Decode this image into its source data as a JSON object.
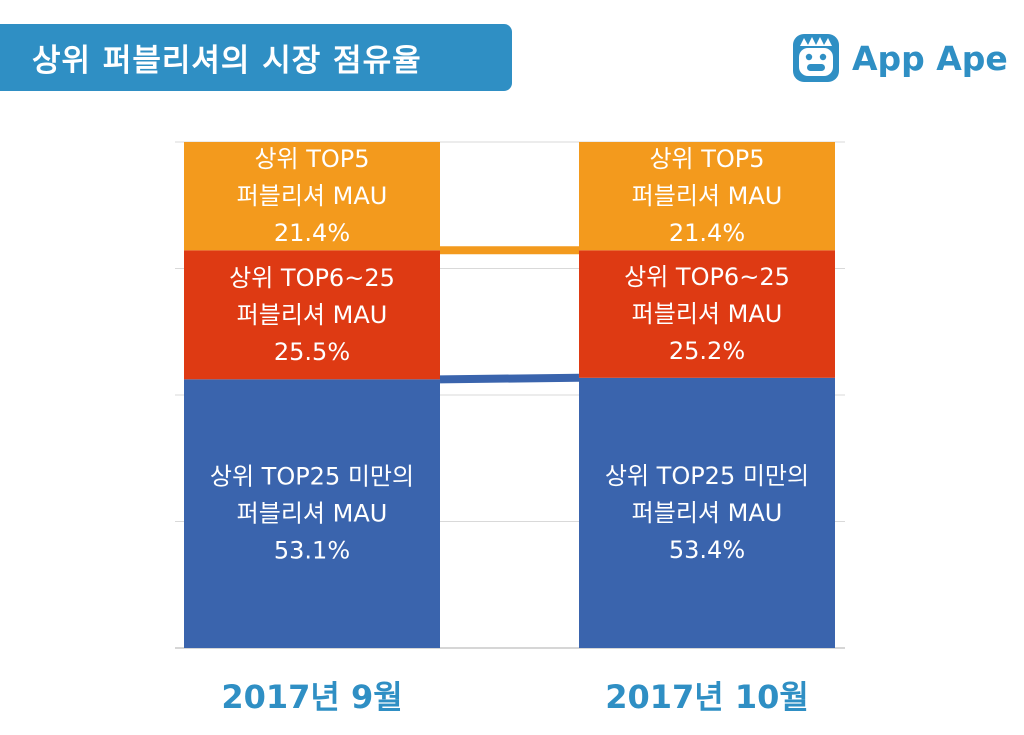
{
  "header": {
    "title": "상위 퍼블리셔의 시장 점유율",
    "brand_name": "App Ape",
    "logo_icon": "ape-face-icon"
  },
  "colors": {
    "brand": "#2f8fc4",
    "top5": "#f39a1d",
    "top6_25": "#de3a13",
    "below25": "#3a64ad"
  },
  "chart_data": {
    "type": "bar",
    "stacked": true,
    "normalized_percent": true,
    "categories": [
      "2017년 9월",
      "2017년 10월"
    ],
    "series": [
      {
        "key": "below25",
        "labels": [
          "상위 TOP25 미만의",
          "퍼블리셔 MAU"
        ],
        "values": [
          53.1,
          53.4
        ],
        "value_labels": [
          "53.1%",
          "53.4%"
        ],
        "color": "#3a64ad"
      },
      {
        "key": "top6_25",
        "labels": [
          "상위 TOP6~25",
          "퍼블리셔 MAU"
        ],
        "values": [
          25.5,
          25.2
        ],
        "value_labels": [
          "25.5%",
          "25.2%"
        ],
        "color": "#de3a13"
      },
      {
        "key": "top5",
        "labels": [
          "상위 TOP5",
          "퍼블리셔 MAU"
        ],
        "values": [
          21.4,
          21.4
        ],
        "value_labels": [
          "21.4%",
          "21.4%"
        ],
        "color": "#f39a1d"
      }
    ],
    "ylim": [
      0,
      100
    ],
    "grid": true,
    "connectors": true,
    "title": "",
    "xlabel": "",
    "ylabel": ""
  }
}
